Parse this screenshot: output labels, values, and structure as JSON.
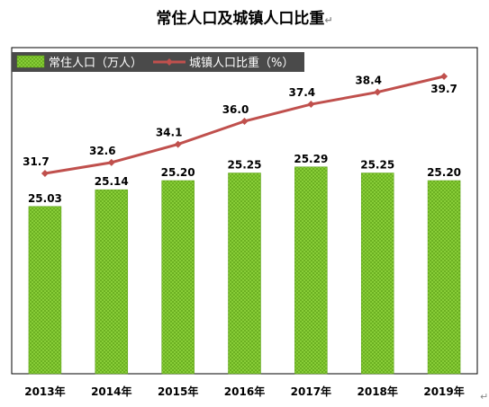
{
  "title": "常住人口及城镇人口比重",
  "para_mark": "↵",
  "colors": {
    "bar": "#8bd13a",
    "bar_dark": "#5a9e14",
    "line": "#c0504d",
    "legend_bg": "#4a4a4a"
  },
  "chart_data": {
    "type": "bar",
    "categories": [
      "2013年",
      "2014年",
      "2015年",
      "2016年",
      "2017年",
      "2018年",
      "2019年"
    ],
    "series": [
      {
        "name": "常住人口（万人）",
        "type": "bar",
        "values": [
          25.03,
          25.14,
          25.2,
          25.25,
          25.29,
          25.25,
          25.2
        ],
        "labels": [
          "25.03",
          "25.14",
          "25.20",
          "25.25",
          "25.29",
          "25.25",
          "25.20"
        ]
      },
      {
        "name": "城镇人口比重（%）",
        "type": "line",
        "values": [
          31.7,
          32.6,
          34.1,
          36.0,
          37.4,
          38.4,
          39.7
        ],
        "labels": [
          "31.7",
          "32.6",
          "34.1",
          "36.0",
          "37.4",
          "38.4",
          "39.7"
        ]
      }
    ],
    "grid": false,
    "legend": "top-left"
  }
}
